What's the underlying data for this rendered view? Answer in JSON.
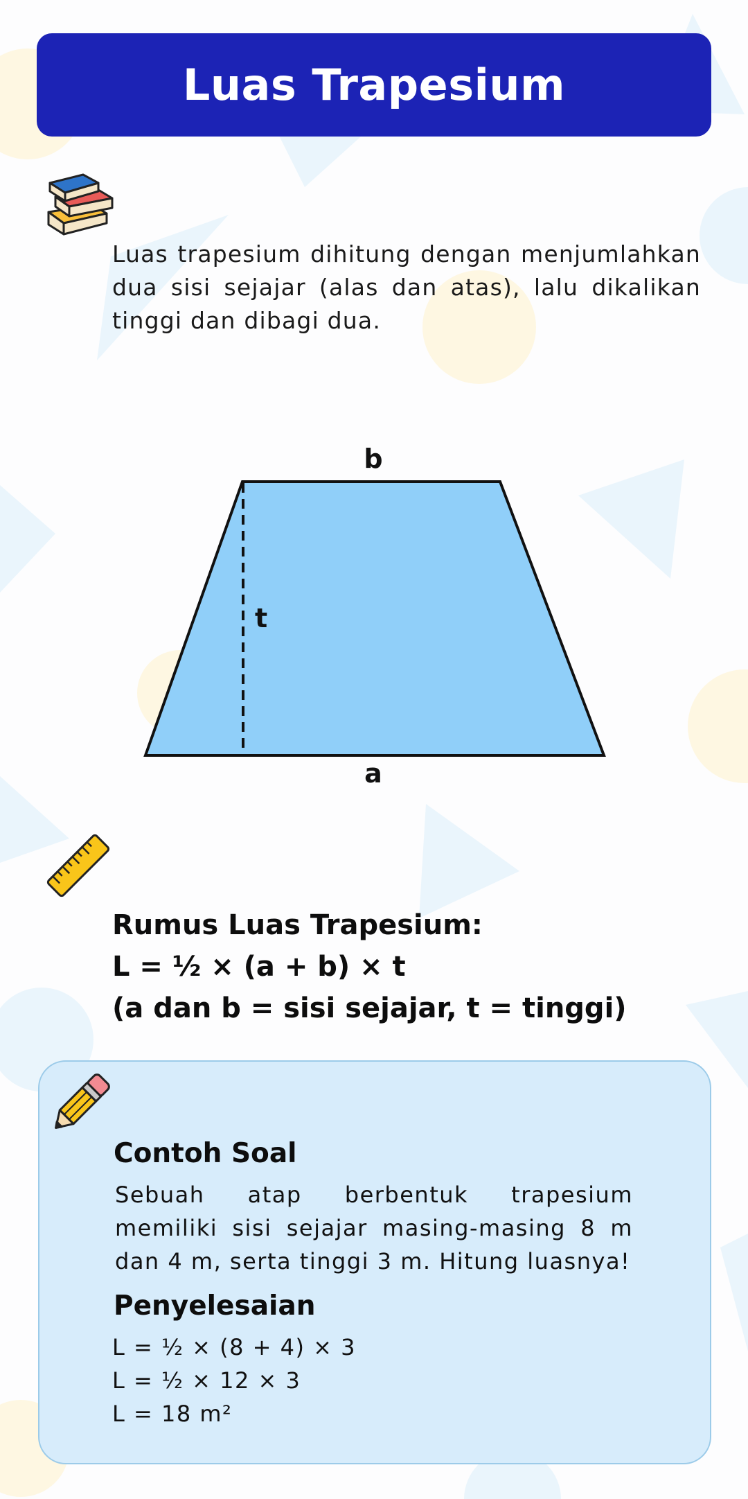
{
  "header": {
    "title": "Luas Trapesium"
  },
  "intro": {
    "text": "Luas trapesium dihitung dengan menjumlahkan dua sisi sejajar (alas dan atas), lalu dikalikan tinggi dan dibagi dua."
  },
  "figure": {
    "label_top": "b",
    "label_height": "t",
    "label_bottom": "a",
    "fill_color": "#90cff9"
  },
  "formula": {
    "title": "Rumus Luas Trapesium:",
    "equation": "L = ½ × (a + b) × t",
    "note": "(a dan b = sisi sejajar, t = tinggi)"
  },
  "example": {
    "title": "Contoh Soal",
    "text": "Sebuah atap berbentuk trapesium memiliki sisi sejajar masing-masing 8 m dan 4 m, serta tinggi 3 m. Hitung luasnya!"
  },
  "solution": {
    "title": "Penyelesaian",
    "lines": [
      "L = ½ × (8 + 4) × 3",
      "L = ½ × 12 × 3",
      "L = 18 m²"
    ]
  },
  "icons": {
    "books": "books-icon",
    "ruler": "ruler-icon",
    "pencil": "pencil-icon"
  },
  "colors": {
    "header": "#1c23b5",
    "card": "#d7ecfb",
    "shape_fill": "#90cff9"
  }
}
